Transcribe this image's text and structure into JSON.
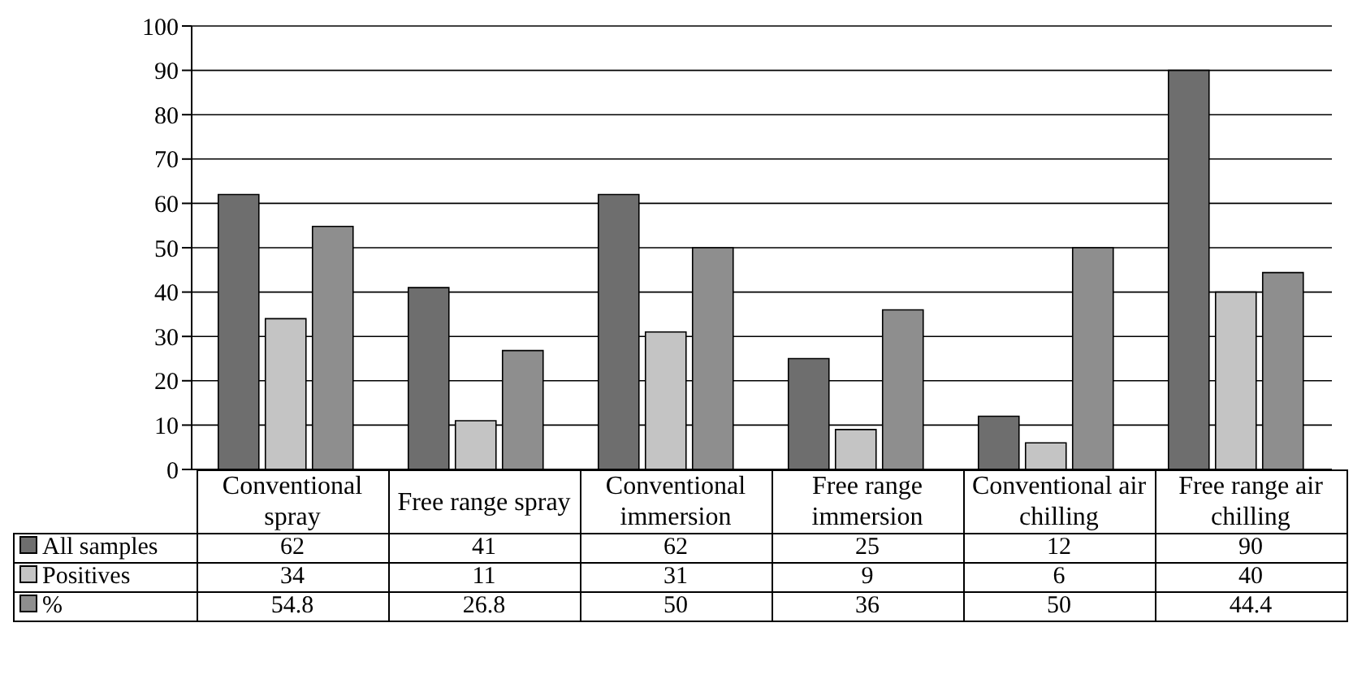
{
  "chart_data": {
    "type": "bar",
    "categories": [
      "Conventional spray",
      "Free range spray",
      "Conventional immersion",
      "Free range immersion",
      "Conventional air chilling",
      "Free range air chilling"
    ],
    "series": [
      {
        "name": "All samples",
        "color": "#6e6e6e",
        "values": [
          62,
          41,
          62,
          25,
          12,
          90
        ]
      },
      {
        "name": "Positives",
        "color": "#c4c4c4",
        "values": [
          34,
          11,
          31,
          9,
          6,
          40
        ]
      },
      {
        "name": "%",
        "color": "#8e8e8e",
        "values": [
          54.8,
          26.8,
          50,
          36,
          50,
          44.4
        ]
      }
    ],
    "ylim": [
      0,
      100
    ],
    "yticks": [
      0,
      10,
      20,
      30,
      40,
      50,
      60,
      70,
      80,
      90,
      100
    ],
    "grid": "y",
    "legend": "bottom",
    "data_labels": true
  }
}
